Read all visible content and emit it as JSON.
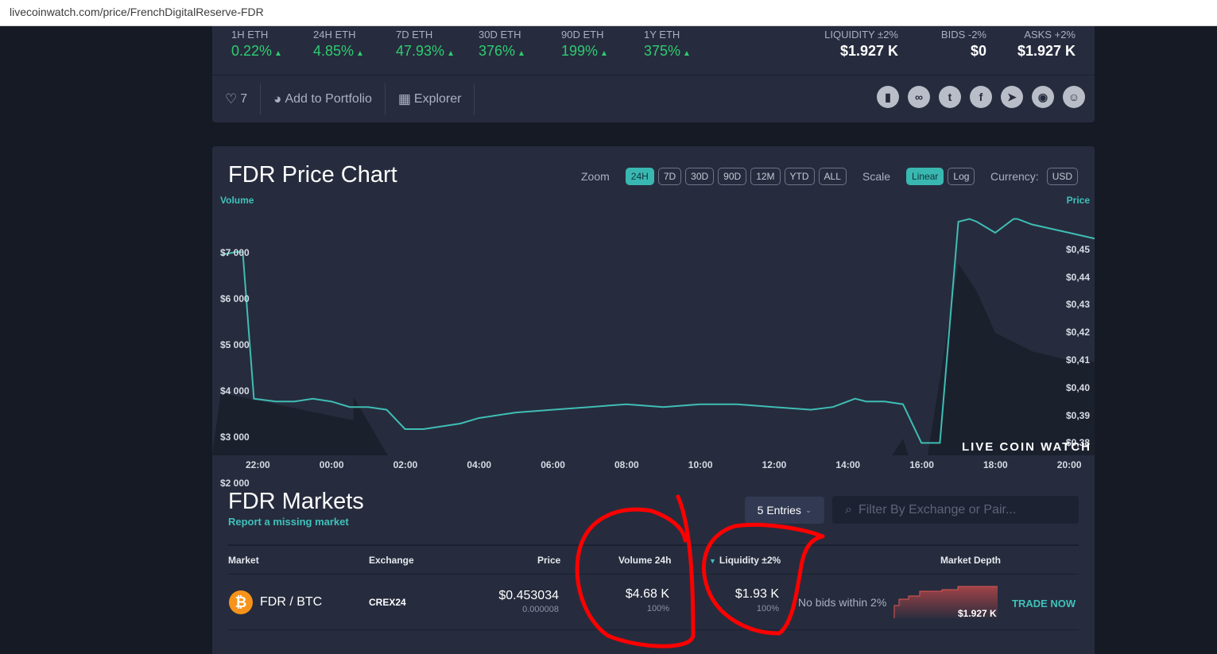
{
  "browser": {
    "url": "livecoinwatch.com/price/FrenchDigitalReserve-FDR"
  },
  "stats": [
    {
      "label": "1H ETH",
      "value": "0.22%"
    },
    {
      "label": "24H ETH",
      "value": "4.85%"
    },
    {
      "label": "7D ETH",
      "value": "47.93%"
    },
    {
      "label": "30D ETH",
      "value": "376%"
    },
    {
      "label": "90D ETH",
      "value": "199%"
    },
    {
      "label": "1Y ETH",
      "value": "375%"
    }
  ],
  "liquidity_stats": [
    {
      "label": "LIQUIDITY ±2%",
      "value": "$1.927 K"
    },
    {
      "label": "BIDS -2%",
      "value": "$0"
    },
    {
      "label": "ASKS +2%",
      "value": "$1.927 K"
    }
  ],
  "actions": {
    "likes": "7",
    "portfolio": "Add to Portfolio",
    "explorer": "Explorer"
  },
  "socials": [
    "whitepaper-icon",
    "link-icon",
    "twitter-icon",
    "facebook-icon",
    "telegram-icon",
    "discord-icon",
    "reddit-icon"
  ],
  "chart": {
    "title": "FDR Price Chart",
    "zoom_label": "Zoom",
    "zoom_options": [
      "24H",
      "7D",
      "30D",
      "90D",
      "12M",
      "YTD",
      "ALL"
    ],
    "zoom_active": "24H",
    "scale_label": "Scale",
    "scale_options": [
      "Linear",
      "Log"
    ],
    "scale_active": "Linear",
    "currency_label": "Currency:",
    "currency": "USD",
    "watermark": "LIVE COIN WATCH"
  },
  "chart_data": {
    "type": "line",
    "title": "FDR Price Chart",
    "left_axis_label": "Volume",
    "right_axis_label": "Price",
    "volume_ticks": [
      "$7 000",
      "$6 000",
      "$5 000",
      "$4 000",
      "$3 000",
      "$2 000"
    ],
    "price_ticks": [
      "$0,45",
      "$0,44",
      "$0,43",
      "$0,42",
      "$0,41",
      "$0,40",
      "$0,39",
      "$0,38"
    ],
    "x_ticks": [
      "22:00",
      "00:00",
      "02:00",
      "04:00",
      "06:00",
      "08:00",
      "10:00",
      "12:00",
      "14:00",
      "16:00",
      "18:00",
      "20:00"
    ],
    "volume_ylim": [
      2000,
      7000
    ],
    "price_ylim": [
      0.38,
      0.46
    ],
    "x_hours": [
      0,
      24
    ],
    "price_series": {
      "name": "Price",
      "x": [
        0,
        0.4,
        0.6,
        0.9,
        1.5,
        2,
        2.5,
        3,
        3.5,
        4,
        4.5,
        5,
        5.5,
        6,
        6.5,
        7,
        8,
        9,
        10,
        11,
        12,
        13,
        14,
        15,
        16,
        16.6,
        17.2,
        17.5,
        18,
        18.5,
        19,
        19.5,
        20,
        20.3,
        20.5,
        21,
        21.5,
        21.6,
        22,
        23,
        24
      ],
      "y": [
        0.448,
        0.449,
        0.449,
        0.396,
        0.395,
        0.395,
        0.396,
        0.395,
        0.393,
        0.393,
        0.392,
        0.385,
        0.385,
        0.386,
        0.387,
        0.389,
        0.391,
        0.392,
        0.393,
        0.394,
        0.393,
        0.394,
        0.394,
        0.393,
        0.392,
        0.393,
        0.396,
        0.395,
        0.395,
        0.394,
        0.38,
        0.38,
        0.46,
        0.461,
        0.46,
        0.456,
        0.461,
        0.461,
        0.459,
        0.456,
        0.453
      ]
    },
    "volume_series": {
      "name": "Volume",
      "x": [
        0,
        3.6,
        3.61,
        5,
        7,
        10,
        14,
        16,
        17.5,
        18.5,
        19,
        19.5,
        20,
        20.5,
        21,
        22,
        22.5,
        23,
        23.5,
        24
      ],
      "y": [
        4100,
        3500,
        4000,
        2100,
        1900,
        1900,
        1900,
        1900,
        1900,
        3100,
        1900,
        4400,
        6900,
        6300,
        5400,
        5000,
        4900,
        4800,
        4800,
        4700
      ]
    }
  },
  "markets": {
    "title": "FDR Markets",
    "report_link": "Report a missing market",
    "entries": "5 Entries",
    "filter_placeholder": "Filter By Exchange or Pair...",
    "columns": [
      "Market",
      "Exchange",
      "Price",
      "Volume 24h",
      "Liquidity ±2%",
      "Market Depth"
    ],
    "rows": [
      {
        "pair": "FDR / BTC",
        "exchange": "CREX24",
        "price": "$0.453034",
        "price_btc": "0.000008",
        "volume": "$4.68 K",
        "volume_pct": "100%",
        "liquidity": "$1.93 K",
        "liquidity_pct": "100%",
        "no_bids": "No bids within 2%",
        "depth_value": "$1.927 K",
        "trade": "TRADE NOW"
      }
    ]
  },
  "colors": {
    "accent": "#3fc1bb",
    "positive": "#2ecc71",
    "annotation": "#ff0000",
    "btc": "#f7931a"
  }
}
